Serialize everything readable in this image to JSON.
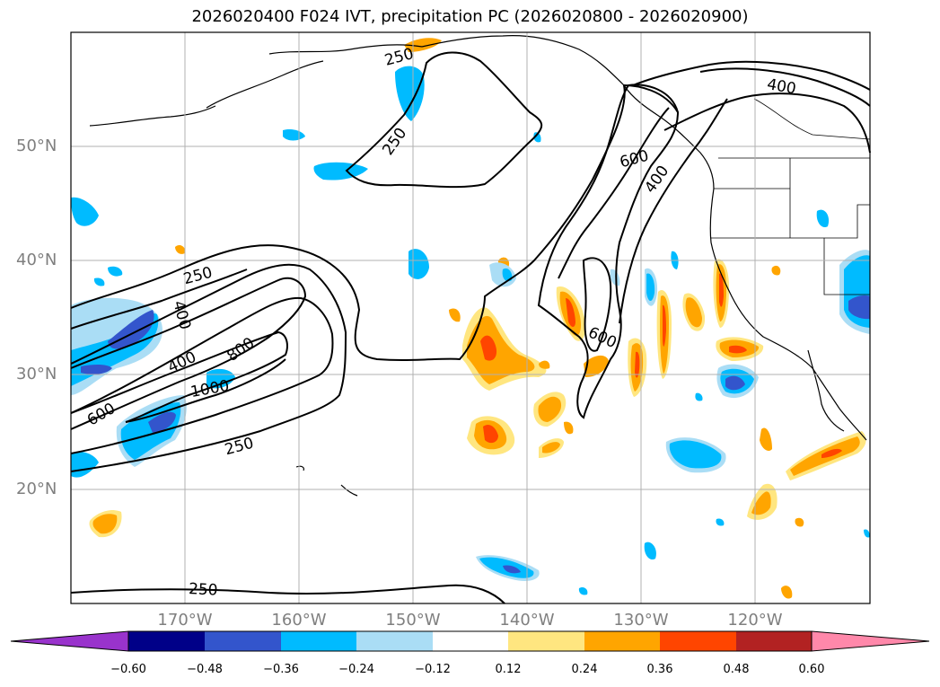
{
  "title": "2026020400 F024 IVT, precipitation PC (2026020800 - 2026020900)",
  "lat_labels": [
    "50°N",
    "40°N",
    "30°N",
    "20°N"
  ],
  "lon_labels": [
    "170°W",
    "160°W",
    "150°W",
    "140°W",
    "130°W",
    "120°W"
  ],
  "contour_labels": [
    "250",
    "250",
    "250",
    "250",
    "250",
    "400",
    "400",
    "400",
    "400",
    "600",
    "600",
    "600",
    "800",
    "1000"
  ],
  "colorbar": {
    "ticks": [
      "−0.60",
      "−0.48",
      "−0.36",
      "−0.24",
      "−0.12",
      "0.12",
      "0.24",
      "0.36",
      "0.48",
      "0.60"
    ],
    "colors": [
      "#9933cc",
      "#000088",
      "#3355cc",
      "#00bbff",
      "#aaddf5",
      "#ffffff",
      "#ffe680",
      "#ffa500",
      "#ff4500",
      "#b22222",
      "#ff88aa"
    ]
  },
  "colors": {
    "grid": "#b0b0b0",
    "tick_label": "#7f7f7f",
    "contour": "#000000"
  }
}
